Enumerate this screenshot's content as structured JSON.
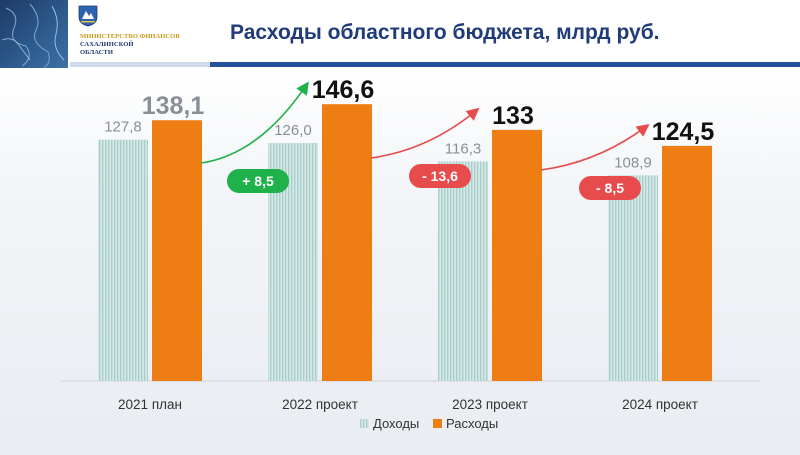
{
  "header": {
    "ministry_line1": "МИНИСТЕРСТВО ФИНАНСОВ",
    "ministry_line2": "САХАЛИНСКОЙ",
    "ministry_line3": "ОБЛАСТИ",
    "title": "Расходы областного бюджета, млрд руб."
  },
  "chart_data": {
    "type": "bar",
    "title": "Расходы областного бюджета, млрд руб.",
    "categories": [
      "2021 план",
      "2022 проект",
      "2023 проект",
      "2024 проект"
    ],
    "series": [
      {
        "name": "Доходы",
        "values": [
          127.8,
          126.0,
          116.3,
          108.9
        ],
        "labels": [
          "127,8",
          "126,0",
          "116,3",
          "108,9"
        ],
        "color": "#bfdad8"
      },
      {
        "name": "Расходы",
        "values": [
          138.1,
          146.6,
          133,
          124.5
        ],
        "labels": [
          "138,1",
          "146,6",
          "133",
          "124,5"
        ],
        "color": "#ee7d14"
      }
    ],
    "changes": [
      {
        "label": "+ 8,5",
        "color": "#1fb14a",
        "from": 0,
        "to": 1
      },
      {
        "label": "- 13,6",
        "color": "#e84b4b",
        "from": 1,
        "to": 2
      },
      {
        "label": "- 8,5",
        "color": "#e84b4b",
        "from": 2,
        "to": 3
      }
    ],
    "ylim": [
      0,
      170
    ],
    "legend_position": "bottom",
    "grid": false
  }
}
